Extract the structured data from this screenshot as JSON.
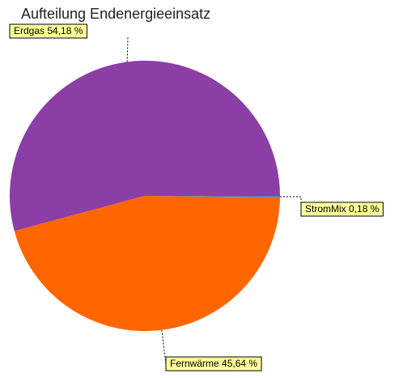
{
  "chart_data": {
    "type": "pie",
    "title": "Aufteilung Endenergieeinsatz",
    "categories": [
      "Erdgas",
      "Fernwärme",
      "StromMix"
    ],
    "values": [
      54.18,
      45.64,
      0.18
    ],
    "value_labels": [
      "54,18 %",
      "45,64 %",
      "0,18 %"
    ],
    "colors": [
      "#8a3ea6",
      "#ff6600",
      "#4f81bd"
    ]
  }
}
